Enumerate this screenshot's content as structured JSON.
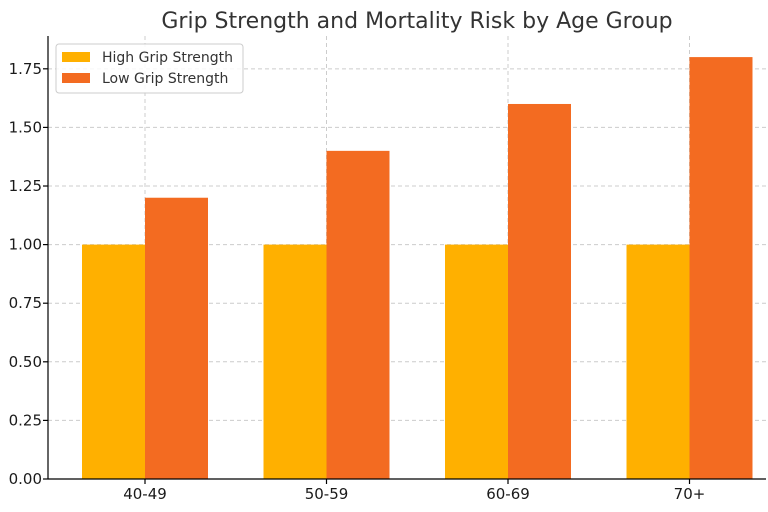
{
  "chart_data": {
    "type": "bar",
    "title": "Grip Strength and Mortality Risk by Age Group",
    "xlabel": "",
    "ylabel": "",
    "categories": [
      "40-49",
      "50-59",
      "60-69",
      "70+"
    ],
    "series": [
      {
        "name": "High Grip Strength",
        "values": [
          1.0,
          1.0,
          1.0,
          1.0
        ],
        "color": "#ffb000"
      },
      {
        "name": "Low Grip Strength",
        "values": [
          1.2,
          1.4,
          1.6,
          1.8
        ],
        "color": "#f36b21"
      }
    ],
    "ylim": [
      0,
      1.89
    ],
    "yticks": [
      "0.00",
      "0.25",
      "0.50",
      "0.75",
      "1.00",
      "1.25",
      "1.50",
      "1.75"
    ],
    "grid": true,
    "legend_position": "top-left"
  }
}
